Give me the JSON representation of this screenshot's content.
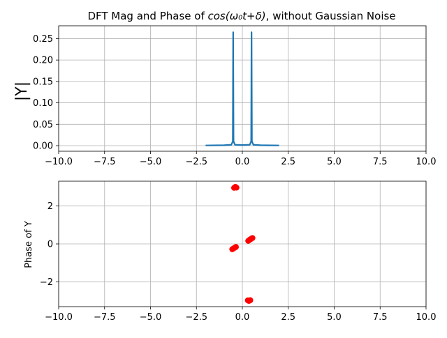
{
  "figure": {
    "title_prefix": "DFT Mag and Phase of ",
    "title_math": "cos(ω₀t+δ)",
    "title_suffix": ", without Gaussian Noise"
  },
  "chart_data": [
    {
      "type": "line",
      "ylabel": "|Y|",
      "xlim": [
        -10,
        10
      ],
      "ylim": [
        -0.013,
        0.28
      ],
      "xticks": [
        -10,
        -7.5,
        -5,
        -2.5,
        0,
        2.5,
        5,
        7.5,
        10
      ],
      "xtick_labels": [
        "−10.0",
        "−7.5",
        "−5.0",
        "−2.5",
        "0.0",
        "2.5",
        "5.0",
        "7.5",
        "10.0"
      ],
      "yticks": [
        0,
        0.05,
        0.1,
        0.15,
        0.2,
        0.25
      ],
      "ytick_labels": [
        "0.00",
        "0.05",
        "0.10",
        "0.15",
        "0.20",
        "0.25"
      ],
      "grid": true,
      "color": "#1f77b4",
      "series": [
        {
          "x": [
            -2.0,
            -1.0,
            -0.6,
            -0.52,
            -0.5,
            -0.48,
            -0.4,
            0.0,
            0.4,
            0.48,
            0.5,
            0.52,
            0.6,
            1.0,
            2.0
          ],
          "y": [
            0.0005,
            0.001,
            0.002,
            0.01,
            0.265,
            0.01,
            0.002,
            0.0015,
            0.002,
            0.01,
            0.265,
            0.01,
            0.002,
            0.001,
            0.0005
          ]
        }
      ]
    },
    {
      "type": "scatter",
      "ylabel": "Phase of Y",
      "xlim": [
        -10,
        10
      ],
      "ylim": [
        -3.3,
        3.3
      ],
      "xticks": [
        -10,
        -7.5,
        -5,
        -2.5,
        0,
        2.5,
        5,
        7.5,
        10
      ],
      "xtick_labels": [
        "−10.0",
        "−7.5",
        "−5.0",
        "−2.5",
        "0.0",
        "2.5",
        "5.0",
        "7.5",
        "10.0"
      ],
      "yticks": [
        -2,
        0,
        2
      ],
      "ytick_labels": [
        "−2",
        "0",
        "2"
      ],
      "grid": true,
      "color": "#ff0000",
      "series": [
        {
          "x": [
            -0.45,
            -0.42,
            -0.38,
            -0.35,
            -0.32,
            -0.55,
            -0.5,
            -0.45,
            -0.4,
            -0.35,
            0.32,
            0.36,
            0.4,
            0.45,
            0.5,
            0.55,
            0.3,
            0.33,
            0.36,
            0.4,
            0.43
          ],
          "y": [
            2.95,
            2.97,
            3.0,
            2.98,
            2.96,
            -0.28,
            -0.25,
            -0.22,
            -0.19,
            -0.16,
            0.16,
            0.19,
            0.22,
            0.25,
            0.28,
            0.31,
            -2.97,
            -2.99,
            -3.0,
            -2.98,
            -2.96
          ]
        }
      ]
    }
  ]
}
